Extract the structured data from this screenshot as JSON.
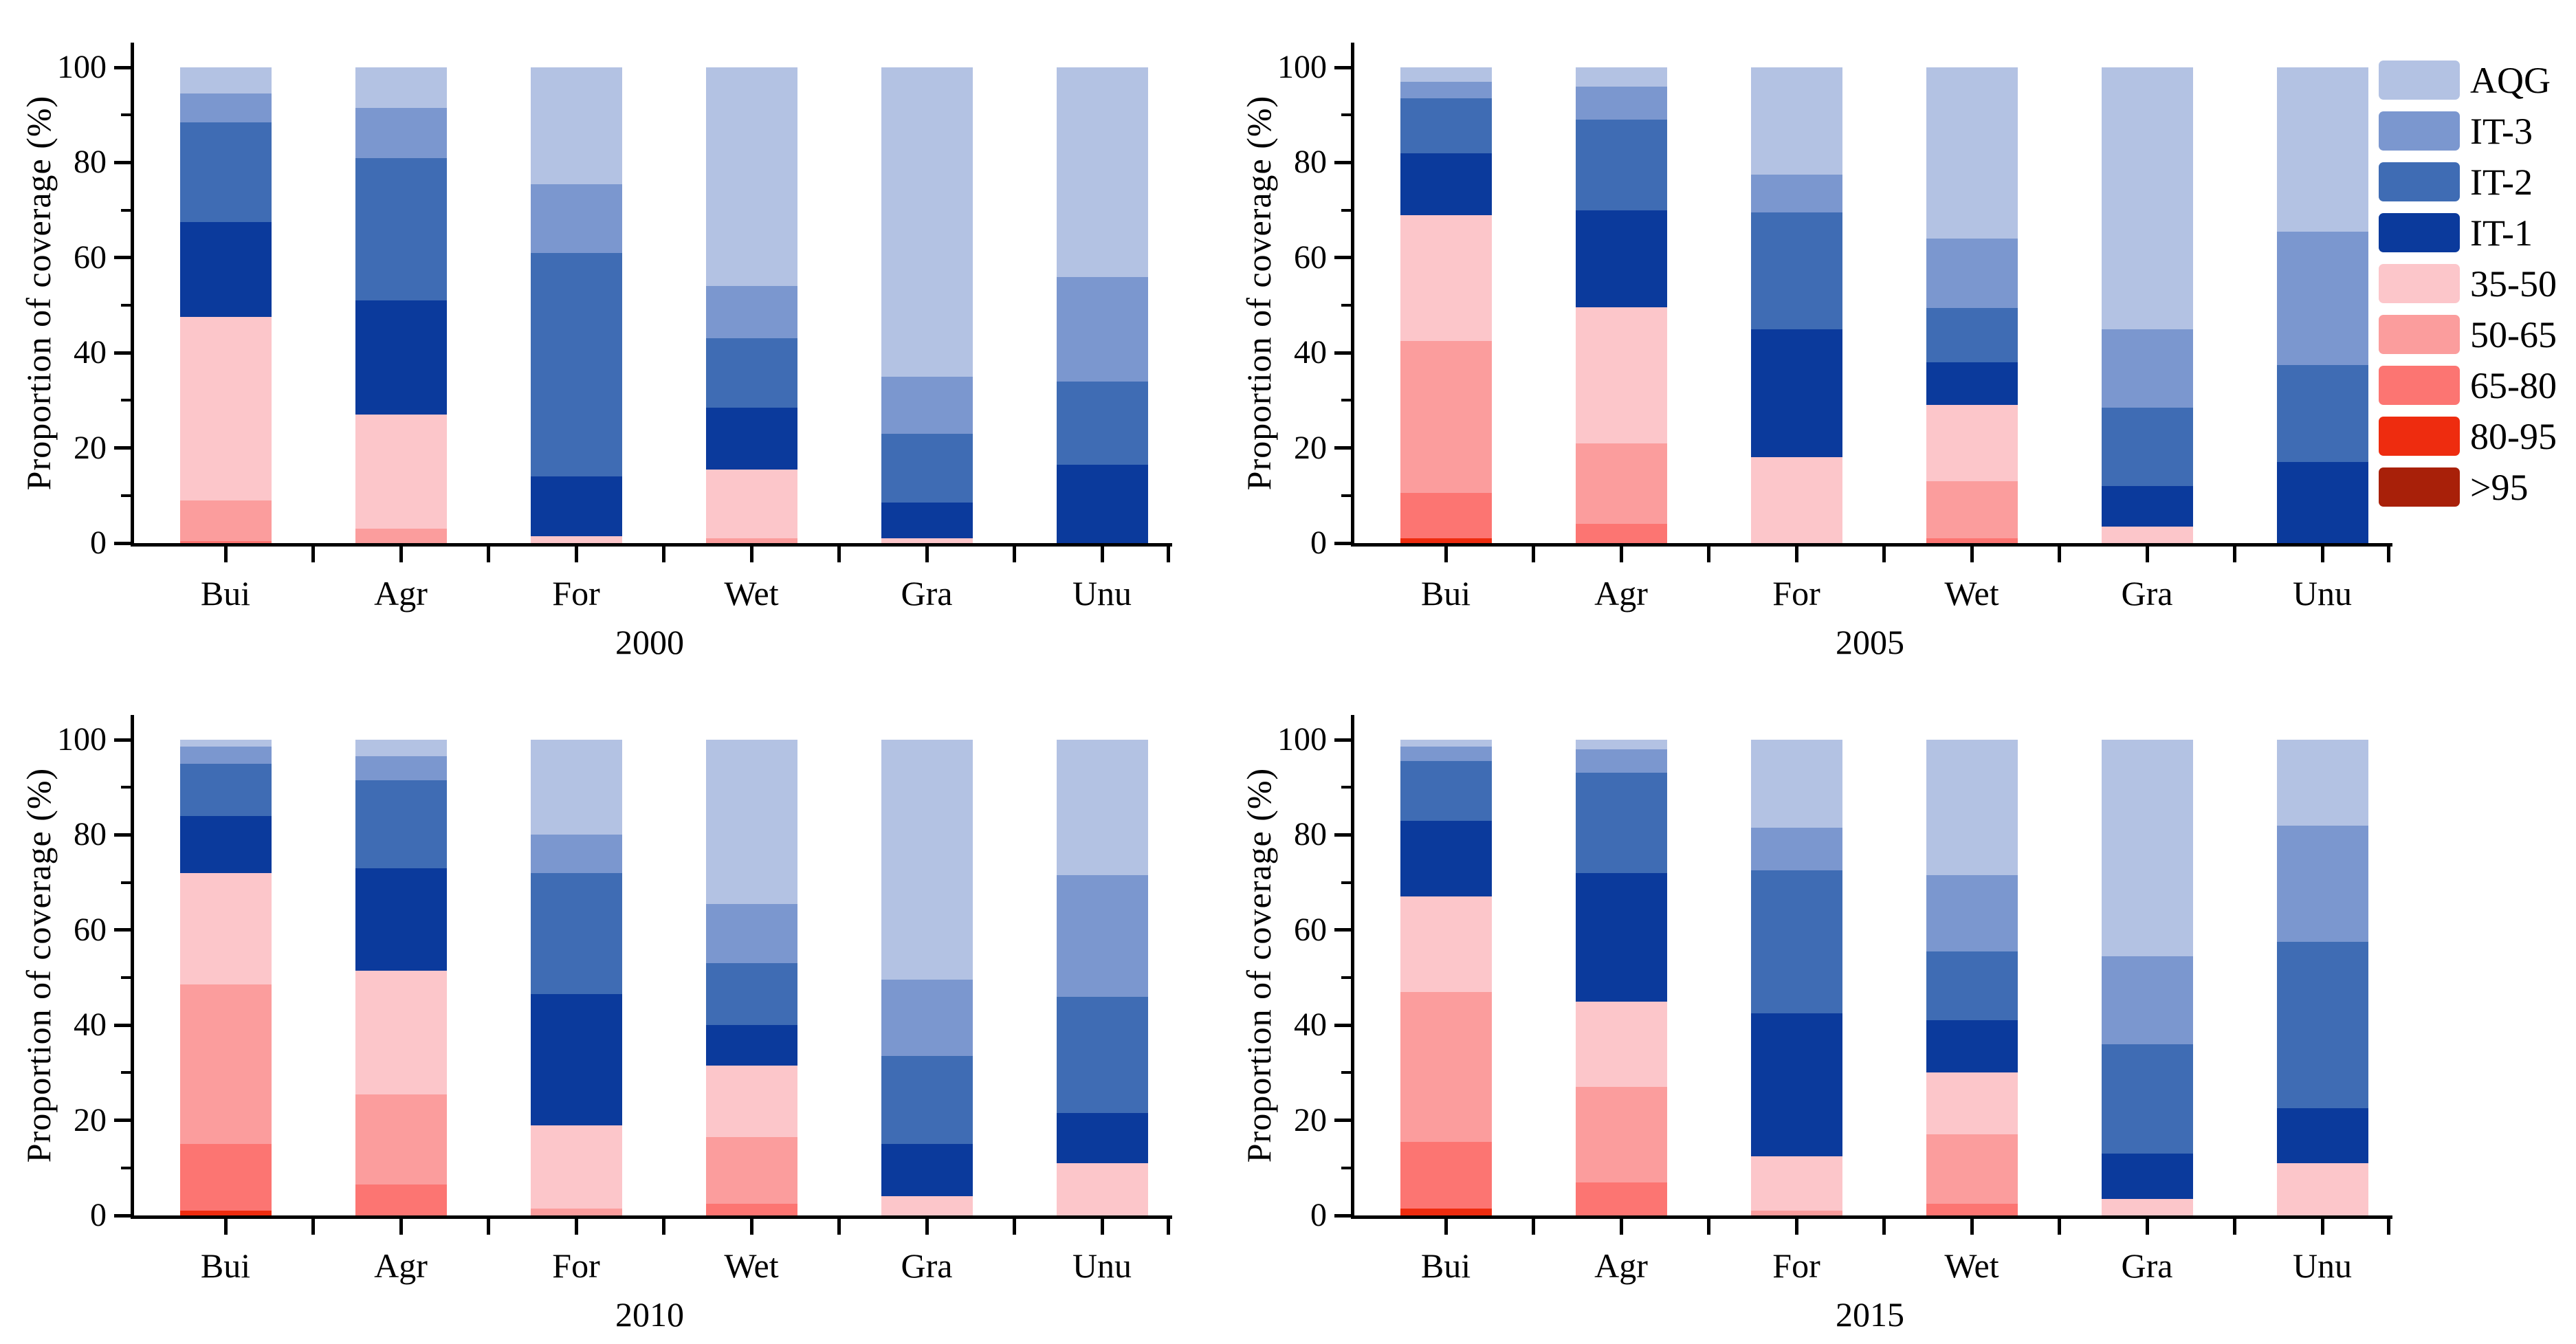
{
  "axis": {
    "ylabel": "Proportion of coverage (%)",
    "yticks": [
      0,
      20,
      40,
      60,
      80,
      100
    ],
    "yminor_ticks": [
      10,
      30,
      50,
      70,
      90
    ],
    "ylim": [
      0,
      100
    ]
  },
  "categories": [
    "Bui",
    "Agr",
    "For",
    "Wet",
    "Gra",
    "Unu"
  ],
  "legend": {
    "position": "top-right",
    "items": [
      {
        "label": "AQG",
        "color": "#b3c2e3"
      },
      {
        "label": "IT-3",
        "color": "#7b97cf"
      },
      {
        "label": "IT-2",
        "color": "#3f6cb4"
      },
      {
        "label": "IT-1",
        "color": "#0b3a9c"
      },
      {
        "label": "35-50",
        "color": "#fcc6ca"
      },
      {
        "label": "50-65",
        "color": "#fb9d9d"
      },
      {
        "label": "65-80",
        "color": "#fc7572"
      },
      {
        "label": "80-95",
        "color": "#ee2c0f"
      },
      {
        "label": ">95",
        "color": "#a82009"
      }
    ]
  },
  "chart_data": [
    {
      "type": "bar",
      "stacked": true,
      "year": "2000",
      "ylabel": "Proportion of coverage (%)",
      "ylim": [
        0,
        100
      ],
      "categories": [
        "Bui",
        "Agr",
        "For",
        "Wet",
        "Gra",
        "Unu"
      ],
      "stack_order": "bottom-to-top",
      "series": [
        {
          "name": ">95",
          "color": "#a82009",
          "values": [
            0,
            0,
            0,
            0,
            0,
            0
          ]
        },
        {
          "name": "80-95",
          "color": "#ee2c0f",
          "values": [
            0,
            0,
            0,
            0,
            0,
            0
          ]
        },
        {
          "name": "65-80",
          "color": "#fc7572",
          "values": [
            0.5,
            0,
            0,
            0,
            0,
            0
          ]
        },
        {
          "name": "50-65",
          "color": "#fb9d9d",
          "values": [
            8.5,
            3,
            0,
            1,
            0,
            0
          ]
        },
        {
          "name": "35-50",
          "color": "#fcc6ca",
          "values": [
            38.5,
            24,
            1.5,
            14.5,
            1,
            0
          ]
        },
        {
          "name": "IT-1",
          "color": "#0b3a9c",
          "values": [
            20,
            24,
            12.5,
            13,
            7.5,
            16.5
          ]
        },
        {
          "name": "IT-2",
          "color": "#3f6cb4",
          "values": [
            21,
            30,
            47,
            14.5,
            14.5,
            17.5
          ]
        },
        {
          "name": "IT-3",
          "color": "#7b97cf",
          "values": [
            6,
            10.5,
            14.5,
            11,
            12,
            22
          ]
        },
        {
          "name": "AQG",
          "color": "#b3c2e3",
          "values": [
            5.5,
            8.5,
            24.5,
            46,
            65,
            44
          ]
        }
      ]
    },
    {
      "type": "bar",
      "stacked": true,
      "year": "2005",
      "ylabel": "Proportion of coverage (%)",
      "ylim": [
        0,
        100
      ],
      "categories": [
        "Bui",
        "Agr",
        "For",
        "Wet",
        "Gra",
        "Unu"
      ],
      "stack_order": "bottom-to-top",
      "series": [
        {
          "name": ">95",
          "color": "#a82009",
          "values": [
            0,
            0,
            0,
            0,
            0,
            0
          ]
        },
        {
          "name": "80-95",
          "color": "#ee2c0f",
          "values": [
            1,
            0,
            0,
            0,
            0,
            0
          ]
        },
        {
          "name": "65-80",
          "color": "#fc7572",
          "values": [
            9.5,
            4,
            0,
            1,
            0,
            0
          ]
        },
        {
          "name": "50-65",
          "color": "#fb9d9d",
          "values": [
            32,
            17,
            0,
            12,
            0,
            0
          ]
        },
        {
          "name": "35-50",
          "color": "#fcc6ca",
          "values": [
            26.5,
            28.5,
            18,
            16,
            3.5,
            0
          ]
        },
        {
          "name": "IT-1",
          "color": "#0b3a9c",
          "values": [
            13,
            20.5,
            27,
            9,
            8.5,
            17
          ]
        },
        {
          "name": "IT-2",
          "color": "#3f6cb4",
          "values": [
            11.5,
            19,
            24.5,
            11.5,
            16.5,
            20.5
          ]
        },
        {
          "name": "IT-3",
          "color": "#7b97cf",
          "values": [
            3.5,
            7,
            8,
            14.5,
            16.5,
            28
          ]
        },
        {
          "name": "AQG",
          "color": "#b3c2e3",
          "values": [
            3,
            4,
            22.5,
            36,
            55,
            34.5
          ]
        }
      ]
    },
    {
      "type": "bar",
      "stacked": true,
      "year": "2010",
      "ylabel": "Proportion of coverage (%)",
      "ylim": [
        0,
        100
      ],
      "categories": [
        "Bui",
        "Agr",
        "For",
        "Wet",
        "Gra",
        "Unu"
      ],
      "stack_order": "bottom-to-top",
      "series": [
        {
          "name": ">95",
          "color": "#a82009",
          "values": [
            0,
            0,
            0,
            0,
            0,
            0
          ]
        },
        {
          "name": "80-95",
          "color": "#ee2c0f",
          "values": [
            1,
            0,
            0,
            0,
            0,
            0
          ]
        },
        {
          "name": "65-80",
          "color": "#fc7572",
          "values": [
            14,
            6.5,
            0,
            2.5,
            0,
            0
          ]
        },
        {
          "name": "50-65",
          "color": "#fb9d9d",
          "values": [
            33.5,
            19,
            1.5,
            14,
            0,
            0
          ]
        },
        {
          "name": "35-50",
          "color": "#fcc6ca",
          "values": [
            23.5,
            26,
            17.5,
            15,
            4,
            11
          ]
        },
        {
          "name": "IT-1",
          "color": "#0b3a9c",
          "values": [
            12,
            21.5,
            27.5,
            8.5,
            11,
            10.5
          ]
        },
        {
          "name": "IT-2",
          "color": "#3f6cb4",
          "values": [
            11,
            18.5,
            25.5,
            13,
            18.5,
            24.5
          ]
        },
        {
          "name": "IT-3",
          "color": "#7b97cf",
          "values": [
            3.5,
            5,
            8,
            12.5,
            16,
            25.5
          ]
        },
        {
          "name": "AQG",
          "color": "#b3c2e3",
          "values": [
            1.5,
            3.5,
            20,
            34.5,
            50.5,
            28.5
          ]
        }
      ]
    },
    {
      "type": "bar",
      "stacked": true,
      "year": "2015",
      "ylabel": "Proportion of coverage (%)",
      "ylim": [
        0,
        100
      ],
      "categories": [
        "Bui",
        "Agr",
        "For",
        "Wet",
        "Gra",
        "Unu"
      ],
      "stack_order": "bottom-to-top",
      "series": [
        {
          "name": ">95",
          "color": "#a82009",
          "values": [
            0,
            0,
            0,
            0,
            0,
            0
          ]
        },
        {
          "name": "80-95",
          "color": "#ee2c0f",
          "values": [
            1.5,
            0,
            0,
            0,
            0,
            0
          ]
        },
        {
          "name": "65-80",
          "color": "#fc7572",
          "values": [
            14,
            7,
            0,
            2.5,
            0,
            0
          ]
        },
        {
          "name": "50-65",
          "color": "#fb9d9d",
          "values": [
            31.5,
            20,
            1,
            14.5,
            0,
            0
          ]
        },
        {
          "name": "35-50",
          "color": "#fcc6ca",
          "values": [
            20,
            18,
            11.5,
            13,
            3.5,
            11
          ]
        },
        {
          "name": "IT-1",
          "color": "#0b3a9c",
          "values": [
            16,
            27,
            30,
            11,
            9.5,
            11.5
          ]
        },
        {
          "name": "IT-2",
          "color": "#3f6cb4",
          "values": [
            12.5,
            21,
            30,
            14.5,
            23,
            35
          ]
        },
        {
          "name": "IT-3",
          "color": "#7b97cf",
          "values": [
            3,
            5,
            9,
            16,
            18.5,
            24.5
          ]
        },
        {
          "name": "AQG",
          "color": "#b3c2e3",
          "values": [
            1.5,
            2,
            18.5,
            28.5,
            45.5,
            18
          ]
        }
      ]
    }
  ]
}
